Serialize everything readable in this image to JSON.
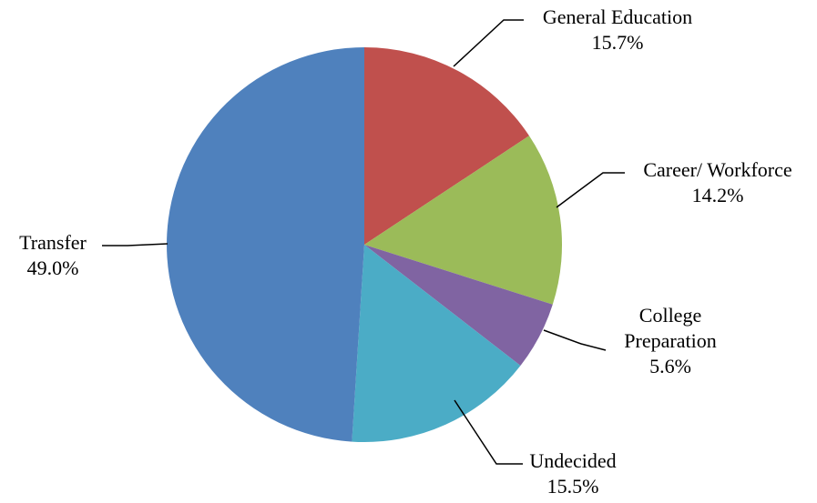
{
  "chart_data": {
    "type": "pie",
    "title": "",
    "start_angle_deg": 0,
    "direction": "clockwise",
    "slices": [
      {
        "name": "General Education",
        "label_lines": [
          "General Education"
        ],
        "value": 15.7,
        "value_label": "15.7%",
        "color": "#C0504D"
      },
      {
        "name": "Career/ Workforce",
        "label_lines": [
          "Career/ Workforce"
        ],
        "value": 14.2,
        "value_label": "14.2%",
        "color": "#9BBB59"
      },
      {
        "name": "College Preparation",
        "label_lines": [
          "College",
          "Preparation"
        ],
        "value": 5.6,
        "value_label": "5.6%",
        "color": "#8064A2"
      },
      {
        "name": "Undecided",
        "label_lines": [
          "Undecided"
        ],
        "value": 15.5,
        "value_label": "15.5%",
        "color": "#4BACC6"
      },
      {
        "name": "Transfer",
        "label_lines": [
          "Transfer"
        ],
        "value": 49.0,
        "value_label": "49.0%",
        "color": "#4F81BD"
      }
    ],
    "legend": "none",
    "data_labels": "outside with leader lines"
  }
}
